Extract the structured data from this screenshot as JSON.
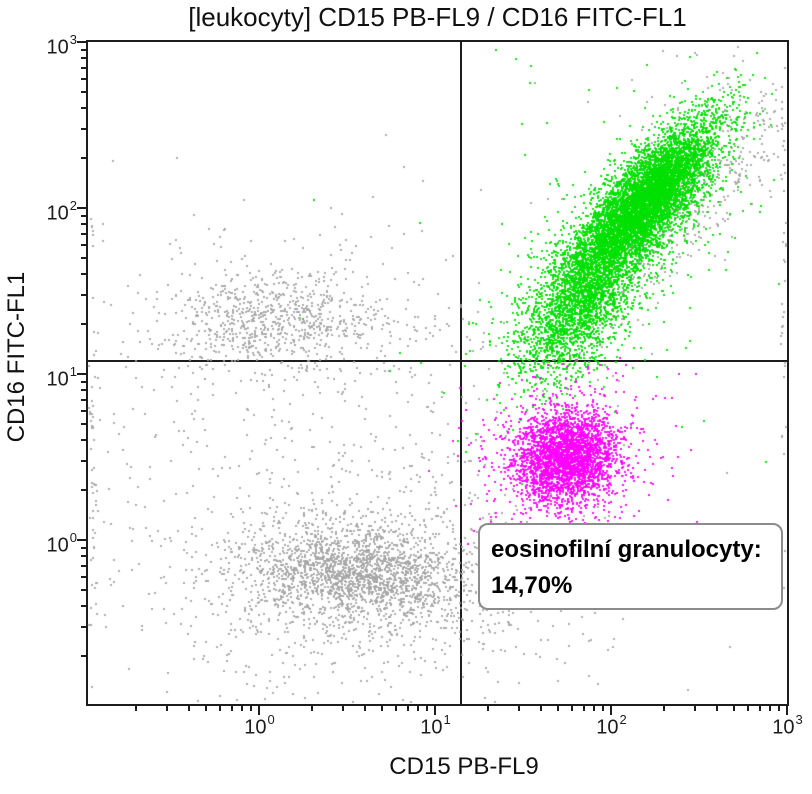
{
  "title": "[leukocyty] CD15 PB-FL9 / CD16 FITC-FL1",
  "colors": {
    "neutrophils_green": "#00e000",
    "eosinophils_magenta": "#ff00ff",
    "ungated_gray": "#a6a6a6",
    "axis_black": "#1c1c1c",
    "annotation_border_gray": "#8c8c8c"
  },
  "chart_data": {
    "type": "scatter",
    "subtype": "flow-cytometry-dot-plot",
    "title": "[leukocyty] CD15 PB-FL9 / CD16 FITC-FL1",
    "xlabel": "CD15 PB-FL9",
    "ylabel": "CD16 FITC-FL1",
    "x_scale": "log",
    "y_scale": "log",
    "xlim": [
      0.107,
      1000
    ],
    "ylim": [
      0.102,
      1000
    ],
    "grid": false,
    "legend": "none",
    "tick_base": "10",
    "x_tick_exponents": [
      0,
      1,
      2,
      3
    ],
    "y_tick_exponents": [
      0,
      1,
      2,
      3
    ],
    "quadrant_gate": {
      "x": 14,
      "y": 12
    },
    "annotation": {
      "line1": "eosinofilní granulocyty:",
      "line2": "14,70%",
      "attached_population": "eosinophils",
      "percentage_value": 14.7
    },
    "populations": [
      {
        "name": "ungated-monocytes-nk-core",
        "color": "ungated_gray",
        "n": 600,
        "cx": 0.07,
        "cy": 1.33,
        "sx": 0.3,
        "sy": 0.135,
        "angle_deg": 0,
        "center_x_value": 1.2,
        "center_y_value": 21
      },
      {
        "name": "ungated-monocytes-nk-halo",
        "color": "ungated_gray",
        "n": 260,
        "cx": 0.1,
        "cy": 1.3,
        "sx": 0.55,
        "sy": 0.28,
        "angle_deg": 0,
        "center_x_value": 1.25,
        "center_y_value": 20
      },
      {
        "name": "ungated-lymphocytes-core",
        "color": "ungated_gray",
        "n": 1500,
        "cx": 0.55,
        "cy": -0.2,
        "sx": 0.3,
        "sy": 0.13,
        "angle_deg": -4,
        "center_x_value": 3.5,
        "center_y_value": 0.63
      },
      {
        "name": "ungated-lymphocytes-halo",
        "color": "ungated_gray",
        "n": 950,
        "cx": 0.62,
        "cy": -0.25,
        "sx": 0.55,
        "sy": 0.28,
        "angle_deg": 0,
        "center_x_value": 4.2,
        "center_y_value": 0.56
      },
      {
        "name": "ungated-debris-diffuse",
        "color": "ungated_gray",
        "n": 600,
        "cx": 0.35,
        "cy": 0.25,
        "sx": 0.85,
        "sy": 0.75,
        "angle_deg": 0,
        "center_x_value": 2.2,
        "center_y_value": 1.8
      },
      {
        "name": "ungated-upper-left-sparse",
        "color": "ungated_gray",
        "n": 14,
        "cx": 0.15,
        "cy": 1.95,
        "sx": 0.55,
        "sy": 0.3,
        "angle_deg": 0,
        "center_x_value": 1.4,
        "center_y_value": 90
      },
      {
        "name": "ungated-doublet-trail",
        "color": "ungated_gray",
        "n": 430,
        "cx": 2.42,
        "cy": 1.98,
        "sx": 0.5,
        "sy": 0.12,
        "angle_deg": 52,
        "center_x_value": 263,
        "center_y_value": 95
      },
      {
        "name": "ungated-top-right-sparse",
        "color": "ungated_gray",
        "n": 110,
        "cx": 2.62,
        "cy": 2.5,
        "sx": 0.3,
        "sy": 0.28,
        "angle_deg": 0,
        "center_x_value": 420,
        "center_y_value": 316
      },
      {
        "name": "ungated-right-low-sparse",
        "color": "ungated_gray",
        "n": 90,
        "cx": 1.5,
        "cy": 0.42,
        "sx": 0.35,
        "sy": 0.5,
        "angle_deg": 0,
        "center_x_value": 32,
        "center_y_value": 2.6
      },
      {
        "name": "ungated-left-edge-pileup",
        "color": "ungated_gray",
        "n": 55,
        "cx": -0.945,
        "cy": 0.35,
        "sx": 0.012,
        "sy": 0.75,
        "angle_deg": 0,
        "center_x_value": 0.11,
        "center_y_value": 2.2
      },
      {
        "name": "ungated-right-edge-pileup",
        "color": "ungated_gray",
        "n": 42,
        "cx": 2.982,
        "cy": 1.4,
        "sx": 0.01,
        "sy": 1.0,
        "angle_deg": 0,
        "center_x_value": 960,
        "center_y_value": 25
      },
      {
        "name": "neutrophil-granulocytes-core",
        "color": "neutrophils_green",
        "n": 6500,
        "cx": 2.18,
        "cy": 2.02,
        "sx": 0.3,
        "sy": 0.1,
        "angle_deg": 52,
        "center_x_value": 151,
        "center_y_value": 105
      },
      {
        "name": "neutrophil-granulocytes-neck",
        "color": "neutrophils_green",
        "n": 1900,
        "cx": 1.8,
        "cy": 1.38,
        "sx": 0.24,
        "sy": 0.13,
        "angle_deg": 58,
        "center_x_value": 63,
        "center_y_value": 24
      },
      {
        "name": "neutrophil-granulocytes-halo",
        "color": "neutrophils_green",
        "n": 800,
        "cx": 2.06,
        "cy": 1.82,
        "sx": 0.5,
        "sy": 0.2,
        "angle_deg": 52,
        "center_x_value": 115,
        "center_y_value": 66
      },
      {
        "name": "neutrophil-granulocytes-strays",
        "color": "neutrophils_green",
        "n": 70,
        "cx": 2.0,
        "cy": 1.9,
        "sx": 0.65,
        "sy": 0.85,
        "angle_deg": 0,
        "center_x_value": 100,
        "center_y_value": 79
      },
      {
        "name": "eosinophil-granulocytes-core",
        "color": "eosinophils_magenta",
        "n": 2700,
        "cx": 1.745,
        "cy": 0.5,
        "sx": 0.145,
        "sy": 0.135,
        "angle_deg": 25,
        "center_x_value": 56,
        "center_y_value": 3.2
      },
      {
        "name": "eosinophil-granulocytes-halo",
        "color": "eosinophils_magenta",
        "n": 420,
        "cx": 1.745,
        "cy": 0.52,
        "sx": 0.3,
        "sy": 0.24,
        "angle_deg": 25,
        "center_x_value": 56,
        "center_y_value": 3.3
      }
    ]
  }
}
